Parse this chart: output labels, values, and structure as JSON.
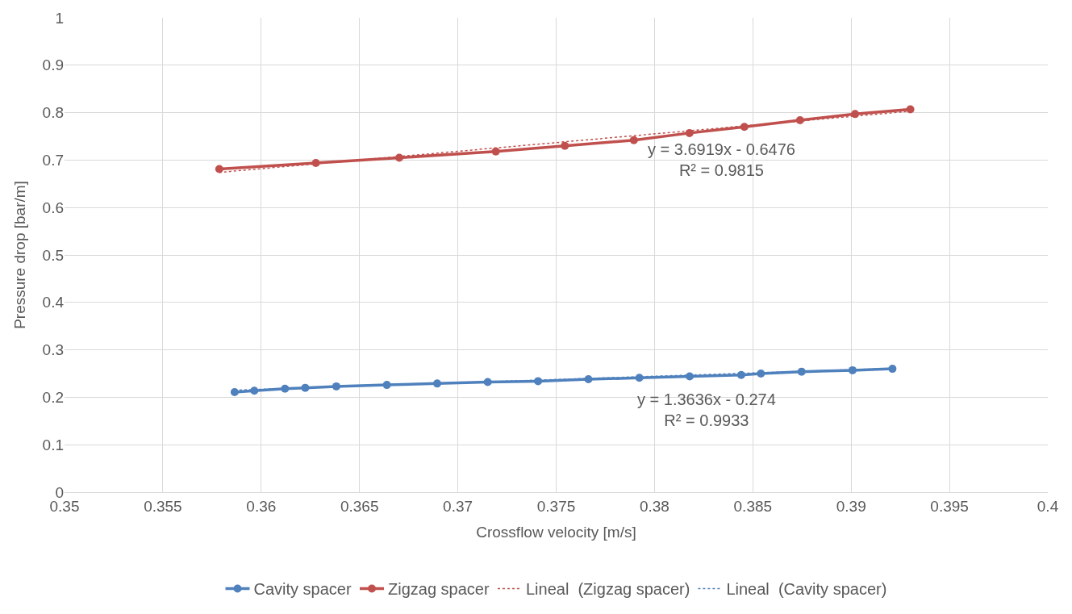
{
  "chart_data": {
    "type": "line",
    "xlabel": "Crossflow velocity [m/s]",
    "ylabel": "Pressure drop [bar/m]",
    "xlim": [
      0.35,
      0.4
    ],
    "xticks": [
      0.35,
      0.355,
      0.36,
      0.365,
      0.37,
      0.375,
      0.38,
      0.385,
      0.39,
      0.395,
      0.4
    ],
    "ylim": [
      0,
      1
    ],
    "yticks": [
      0,
      0.1,
      0.2,
      0.3,
      0.4,
      0.5,
      0.6,
      0.7,
      0.8,
      0.9,
      1
    ],
    "grid": true,
    "legend": "bottom",
    "marker": "circle",
    "line_style": "solid",
    "series": [
      {
        "name": "Cavity spacer",
        "color": "#4f81bd",
        "x": [
          0.35865,
          0.35965,
          0.36121,
          0.36224,
          0.36382,
          0.36639,
          0.36895,
          0.37152,
          0.37408,
          0.37664,
          0.37923,
          0.38179,
          0.38441,
          0.38541,
          0.38748,
          0.39007,
          0.3921
        ],
        "values": [
          0.211,
          0.214,
          0.218,
          0.22,
          0.223,
          0.226,
          0.229,
          0.232,
          0.234,
          0.238,
          0.241,
          0.244,
          0.247,
          0.25,
          0.254,
          0.257,
          0.26
        ]
      },
      {
        "name": "Zigzag spacer",
        "color": "#c0504d",
        "x": [
          0.35787,
          0.36278,
          0.36702,
          0.37193,
          0.37544,
          0.37895,
          0.38178,
          0.38457,
          0.3874,
          0.3902,
          0.39301
        ],
        "values": [
          0.681,
          0.694,
          0.705,
          0.718,
          0.73,
          0.742,
          0.757,
          0.77,
          0.784,
          0.797,
          0.807
        ]
      },
      {
        "name": "Lineal  (Zigzag spacer)",
        "color": "#c0504d",
        "marker": "none",
        "line_style": "dotted",
        "x": [
          0.35787,
          0.39301
        ],
        "values": [
          0.674,
          0.803
        ]
      },
      {
        "name": "Lineal  (Cavity spacer)",
        "color": "#4f81bd",
        "marker": "none",
        "line_style": "dotted",
        "x": [
          0.35865,
          0.3921
        ],
        "values": [
          0.215,
          0.261
        ]
      }
    ],
    "annotations": [
      "y = 3.6919x - 0.6476\nR² = 0.9815",
      "y = 1.3636x - 0.274\nR² = 0.9933"
    ]
  }
}
